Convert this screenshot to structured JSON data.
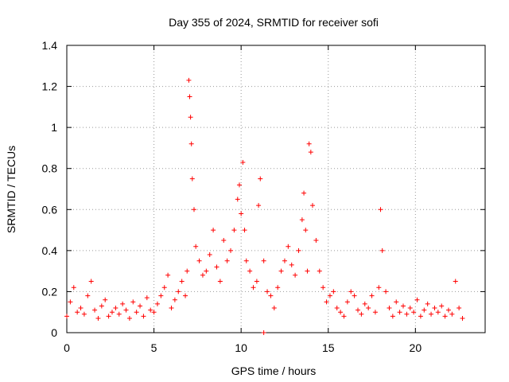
{
  "chart_data": {
    "type": "scatter",
    "title": "Day 355 of 2024, SRMTID for receiver sofi",
    "xlabel": "GPS time / hours",
    "ylabel": "SRMTID / TECUs",
    "xlim": [
      0,
      24
    ],
    "ylim": [
      0,
      1.4
    ],
    "xticks": [
      0,
      5,
      10,
      15,
      20
    ],
    "yticks": [
      0,
      0.2,
      0.4,
      0.6,
      0.8,
      1,
      1.2,
      1.4
    ],
    "ytick_labels": [
      "0",
      "0.2",
      "0.4",
      "0.6",
      "0.8",
      "1",
      "1.2",
      "1.4"
    ],
    "grid": true,
    "marker": "plus",
    "color": "#ff0000",
    "series": [
      {
        "name": "SRMTID",
        "x": [
          0.0,
          0.2,
          0.4,
          0.6,
          0.8,
          1.0,
          1.2,
          1.4,
          1.6,
          1.8,
          2.0,
          2.2,
          2.4,
          2.6,
          2.8,
          3.0,
          3.2,
          3.4,
          3.6,
          3.8,
          4.0,
          4.2,
          4.4,
          4.6,
          4.8,
          5.0,
          5.2,
          5.4,
          5.6,
          5.8,
          6.0,
          6.2,
          6.4,
          6.6,
          6.8,
          6.9,
          7.0,
          7.05,
          7.1,
          7.15,
          7.2,
          7.3,
          7.4,
          7.6,
          7.8,
          8.0,
          8.2,
          8.4,
          8.6,
          8.8,
          9.0,
          9.2,
          9.4,
          9.6,
          9.8,
          9.9,
          10.0,
          10.1,
          10.2,
          10.3,
          10.5,
          10.7,
          10.9,
          11.0,
          11.1,
          11.3,
          11.5,
          11.7,
          11.9,
          12.1,
          12.3,
          12.5,
          12.7,
          12.9,
          13.1,
          13.3,
          13.5,
          13.6,
          13.7,
          13.8,
          13.9,
          14.0,
          14.1,
          14.3,
          14.5,
          14.7,
          14.9,
          15.1,
          15.3,
          15.5,
          15.7,
          15.9,
          16.1,
          16.3,
          16.5,
          16.7,
          16.9,
          17.1,
          17.3,
          17.5,
          17.7,
          17.9,
          18.0,
          18.1,
          18.3,
          18.5,
          18.7,
          18.9,
          19.1,
          19.3,
          19.5,
          19.7,
          19.9,
          20.1,
          20.3,
          20.5,
          20.7,
          20.9,
          21.1,
          21.3,
          21.5,
          21.7,
          21.9,
          22.1,
          22.3,
          22.5,
          22.7
        ],
        "y": [
          0.08,
          0.15,
          0.22,
          0.1,
          0.12,
          0.09,
          0.18,
          0.25,
          0.11,
          0.07,
          0.13,
          0.16,
          0.08,
          0.1,
          0.12,
          0.09,
          0.14,
          0.11,
          0.07,
          0.15,
          0.1,
          0.13,
          0.08,
          0.17,
          0.11,
          0.1,
          0.14,
          0.18,
          0.22,
          0.28,
          0.12,
          0.16,
          0.2,
          0.25,
          0.18,
          0.3,
          1.23,
          1.15,
          1.05,
          0.92,
          0.75,
          0.6,
          0.42,
          0.35,
          0.28,
          0.3,
          0.38,
          0.5,
          0.32,
          0.25,
          0.45,
          0.35,
          0.4,
          0.5,
          0.65,
          0.72,
          0.58,
          0.83,
          0.5,
          0.35,
          0.3,
          0.22,
          0.25,
          0.62,
          0.75,
          0.35,
          0.2,
          0.18,
          0.12,
          0.22,
          0.3,
          0.35,
          0.42,
          0.33,
          0.28,
          0.4,
          0.55,
          0.68,
          0.5,
          0.3,
          0.92,
          0.88,
          0.62,
          0.45,
          0.3,
          0.22,
          0.15,
          0.18,
          0.2,
          0.12,
          0.1,
          0.08,
          0.15,
          0.2,
          0.18,
          0.11,
          0.09,
          0.14,
          0.12,
          0.18,
          0.1,
          0.22,
          0.6,
          0.4,
          0.2,
          0.12,
          0.08,
          0.15,
          0.1,
          0.13,
          0.09,
          0.12,
          0.1,
          0.16,
          0.08,
          0.11,
          0.14,
          0.09,
          0.12,
          0.1,
          0.13,
          0.08,
          0.11,
          0.09,
          0.25,
          0.12,
          0.07
        ],
        "outlier_zero": {
          "x": 11.3,
          "y": 0.0
        }
      }
    ]
  }
}
